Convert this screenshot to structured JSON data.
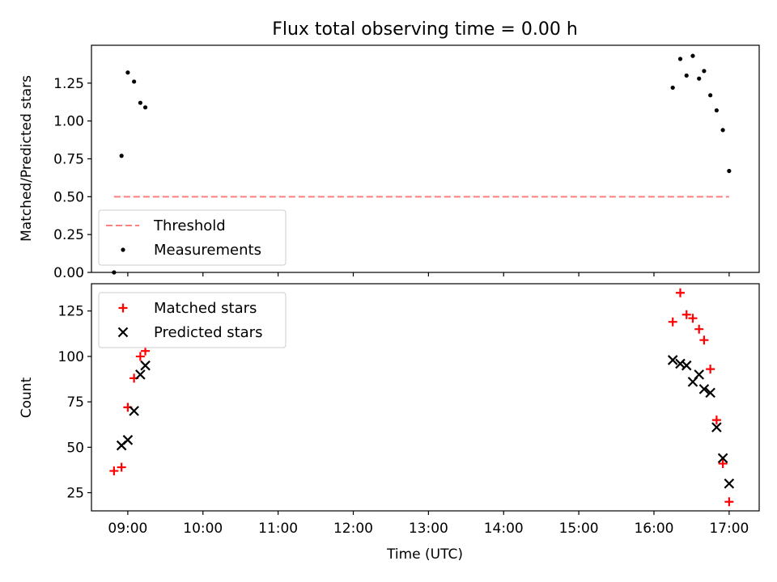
{
  "chart_data": {
    "title": "Flux total observing time = 0.00 h",
    "xlabel": "Time (UTC)",
    "x_ticks": [
      "09:00",
      "10:00",
      "11:00",
      "12:00",
      "13:00",
      "14:00",
      "15:00",
      "16:00",
      "17:00"
    ],
    "xlim": [
      "08:31",
      "17:24"
    ],
    "panels": [
      {
        "type": "scatter",
        "ylabel": "Matched/Predicted stars",
        "ylim": [
          0,
          1.5
        ],
        "y_ticks": [
          "0.00",
          "0.25",
          "0.50",
          "0.75",
          "1.00",
          "1.25"
        ],
        "legend_position": "lower-left",
        "series": [
          {
            "name": "Threshold",
            "type": "line",
            "style": "dashed",
            "color": "#ff7f7f",
            "points": [
              [
                "08:49",
                0.5
              ],
              [
                "17:00",
                0.5
              ]
            ]
          },
          {
            "name": "Measurements",
            "type": "scatter",
            "marker": "dot",
            "color": "#000000",
            "points": [
              [
                "08:49",
                0.0
              ],
              [
                "08:55",
                0.77
              ],
              [
                "09:00",
                1.32
              ],
              [
                "09:05",
                1.26
              ],
              [
                "09:10",
                1.12
              ],
              [
                "09:14",
                1.09
              ],
              [
                "16:15",
                1.22
              ],
              [
                "16:21",
                1.41
              ],
              [
                "16:26",
                1.3
              ],
              [
                "16:31",
                1.43
              ],
              [
                "16:36",
                1.28
              ],
              [
                "16:40",
                1.33
              ],
              [
                "16:45",
                1.17
              ],
              [
                "16:50",
                1.07
              ],
              [
                "16:55",
                0.94
              ],
              [
                "17:00",
                0.67
              ]
            ]
          }
        ]
      },
      {
        "type": "scatter",
        "ylabel": "Count",
        "ylim": [
          15,
          140
        ],
        "y_ticks": [
          "25",
          "50",
          "75",
          "100",
          "125"
        ],
        "legend_position": "upper-left",
        "series": [
          {
            "name": "Matched stars",
            "marker": "plus",
            "color": "#ff0000",
            "points": [
              [
                "08:49",
                37
              ],
              [
                "08:55",
                39
              ],
              [
                "09:00",
                72
              ],
              [
                "09:05",
                88
              ],
              [
                "09:10",
                100
              ],
              [
                "09:14",
                103
              ],
              [
                "16:15",
                119
              ],
              [
                "16:21",
                135
              ],
              [
                "16:26",
                123
              ],
              [
                "16:31",
                121
              ],
              [
                "16:36",
                115
              ],
              [
                "16:40",
                109
              ],
              [
                "16:45",
                93
              ],
              [
                "16:50",
                65
              ],
              [
                "16:55",
                41
              ],
              [
                "17:00",
                20
              ]
            ]
          },
          {
            "name": "Predicted stars",
            "marker": "x",
            "color": "#000000",
            "points": [
              [
                "08:55",
                51
              ],
              [
                "09:00",
                54
              ],
              [
                "09:05",
                70
              ],
              [
                "09:10",
                90
              ],
              [
                "09:14",
                95
              ],
              [
                "16:15",
                98
              ],
              [
                "16:21",
                96
              ],
              [
                "16:26",
                95
              ],
              [
                "16:31",
                86
              ],
              [
                "16:36",
                90
              ],
              [
                "16:40",
                82
              ],
              [
                "16:45",
                80
              ],
              [
                "16:50",
                61
              ],
              [
                "16:55",
                44
              ],
              [
                "17:00",
                30
              ]
            ]
          }
        ]
      }
    ]
  }
}
